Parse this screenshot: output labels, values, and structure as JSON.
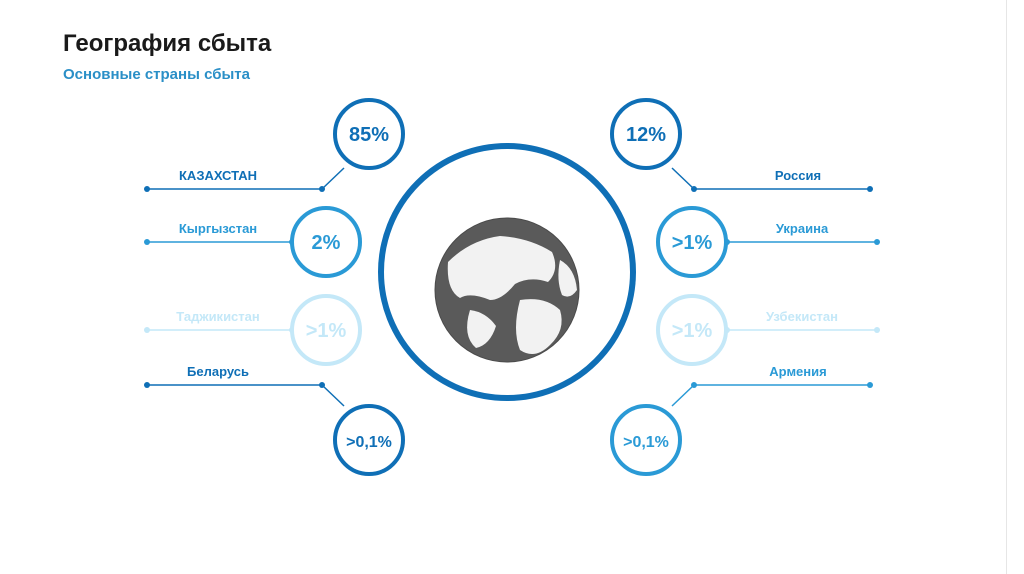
{
  "header": {
    "title": "География сбыта",
    "subtitle": "Основные страны сбыта"
  },
  "globe_icon": "globe-icon",
  "colors": {
    "dark_blue": "#0f6fb6",
    "mid_blue": "#2a9ad6",
    "light_blue": "#c4e8f8",
    "globe": "#5a5a5a"
  },
  "items": [
    {
      "country": "КАЗАХСТАН",
      "value": "85%",
      "side": "left",
      "shade": "dark"
    },
    {
      "country": "Кыргызстан",
      "value": "2%",
      "side": "left",
      "shade": "mid"
    },
    {
      "country": "Таджикистан",
      "value": ">1%",
      "side": "left",
      "shade": "light"
    },
    {
      "country": "Беларусь",
      "value": ">0,1%",
      "side": "left",
      "shade": "dark"
    },
    {
      "country": "Россия",
      "value": "12%",
      "side": "right",
      "shade": "dark"
    },
    {
      "country": "Украина",
      "value": ">1%",
      "side": "right",
      "shade": "mid"
    },
    {
      "country": "Узбекистан",
      "value": ">1%",
      "side": "right",
      "shade": "light"
    },
    {
      "country": "Армения",
      "value": ">0,1%",
      "side": "right",
      "shade": "mid"
    }
  ]
}
